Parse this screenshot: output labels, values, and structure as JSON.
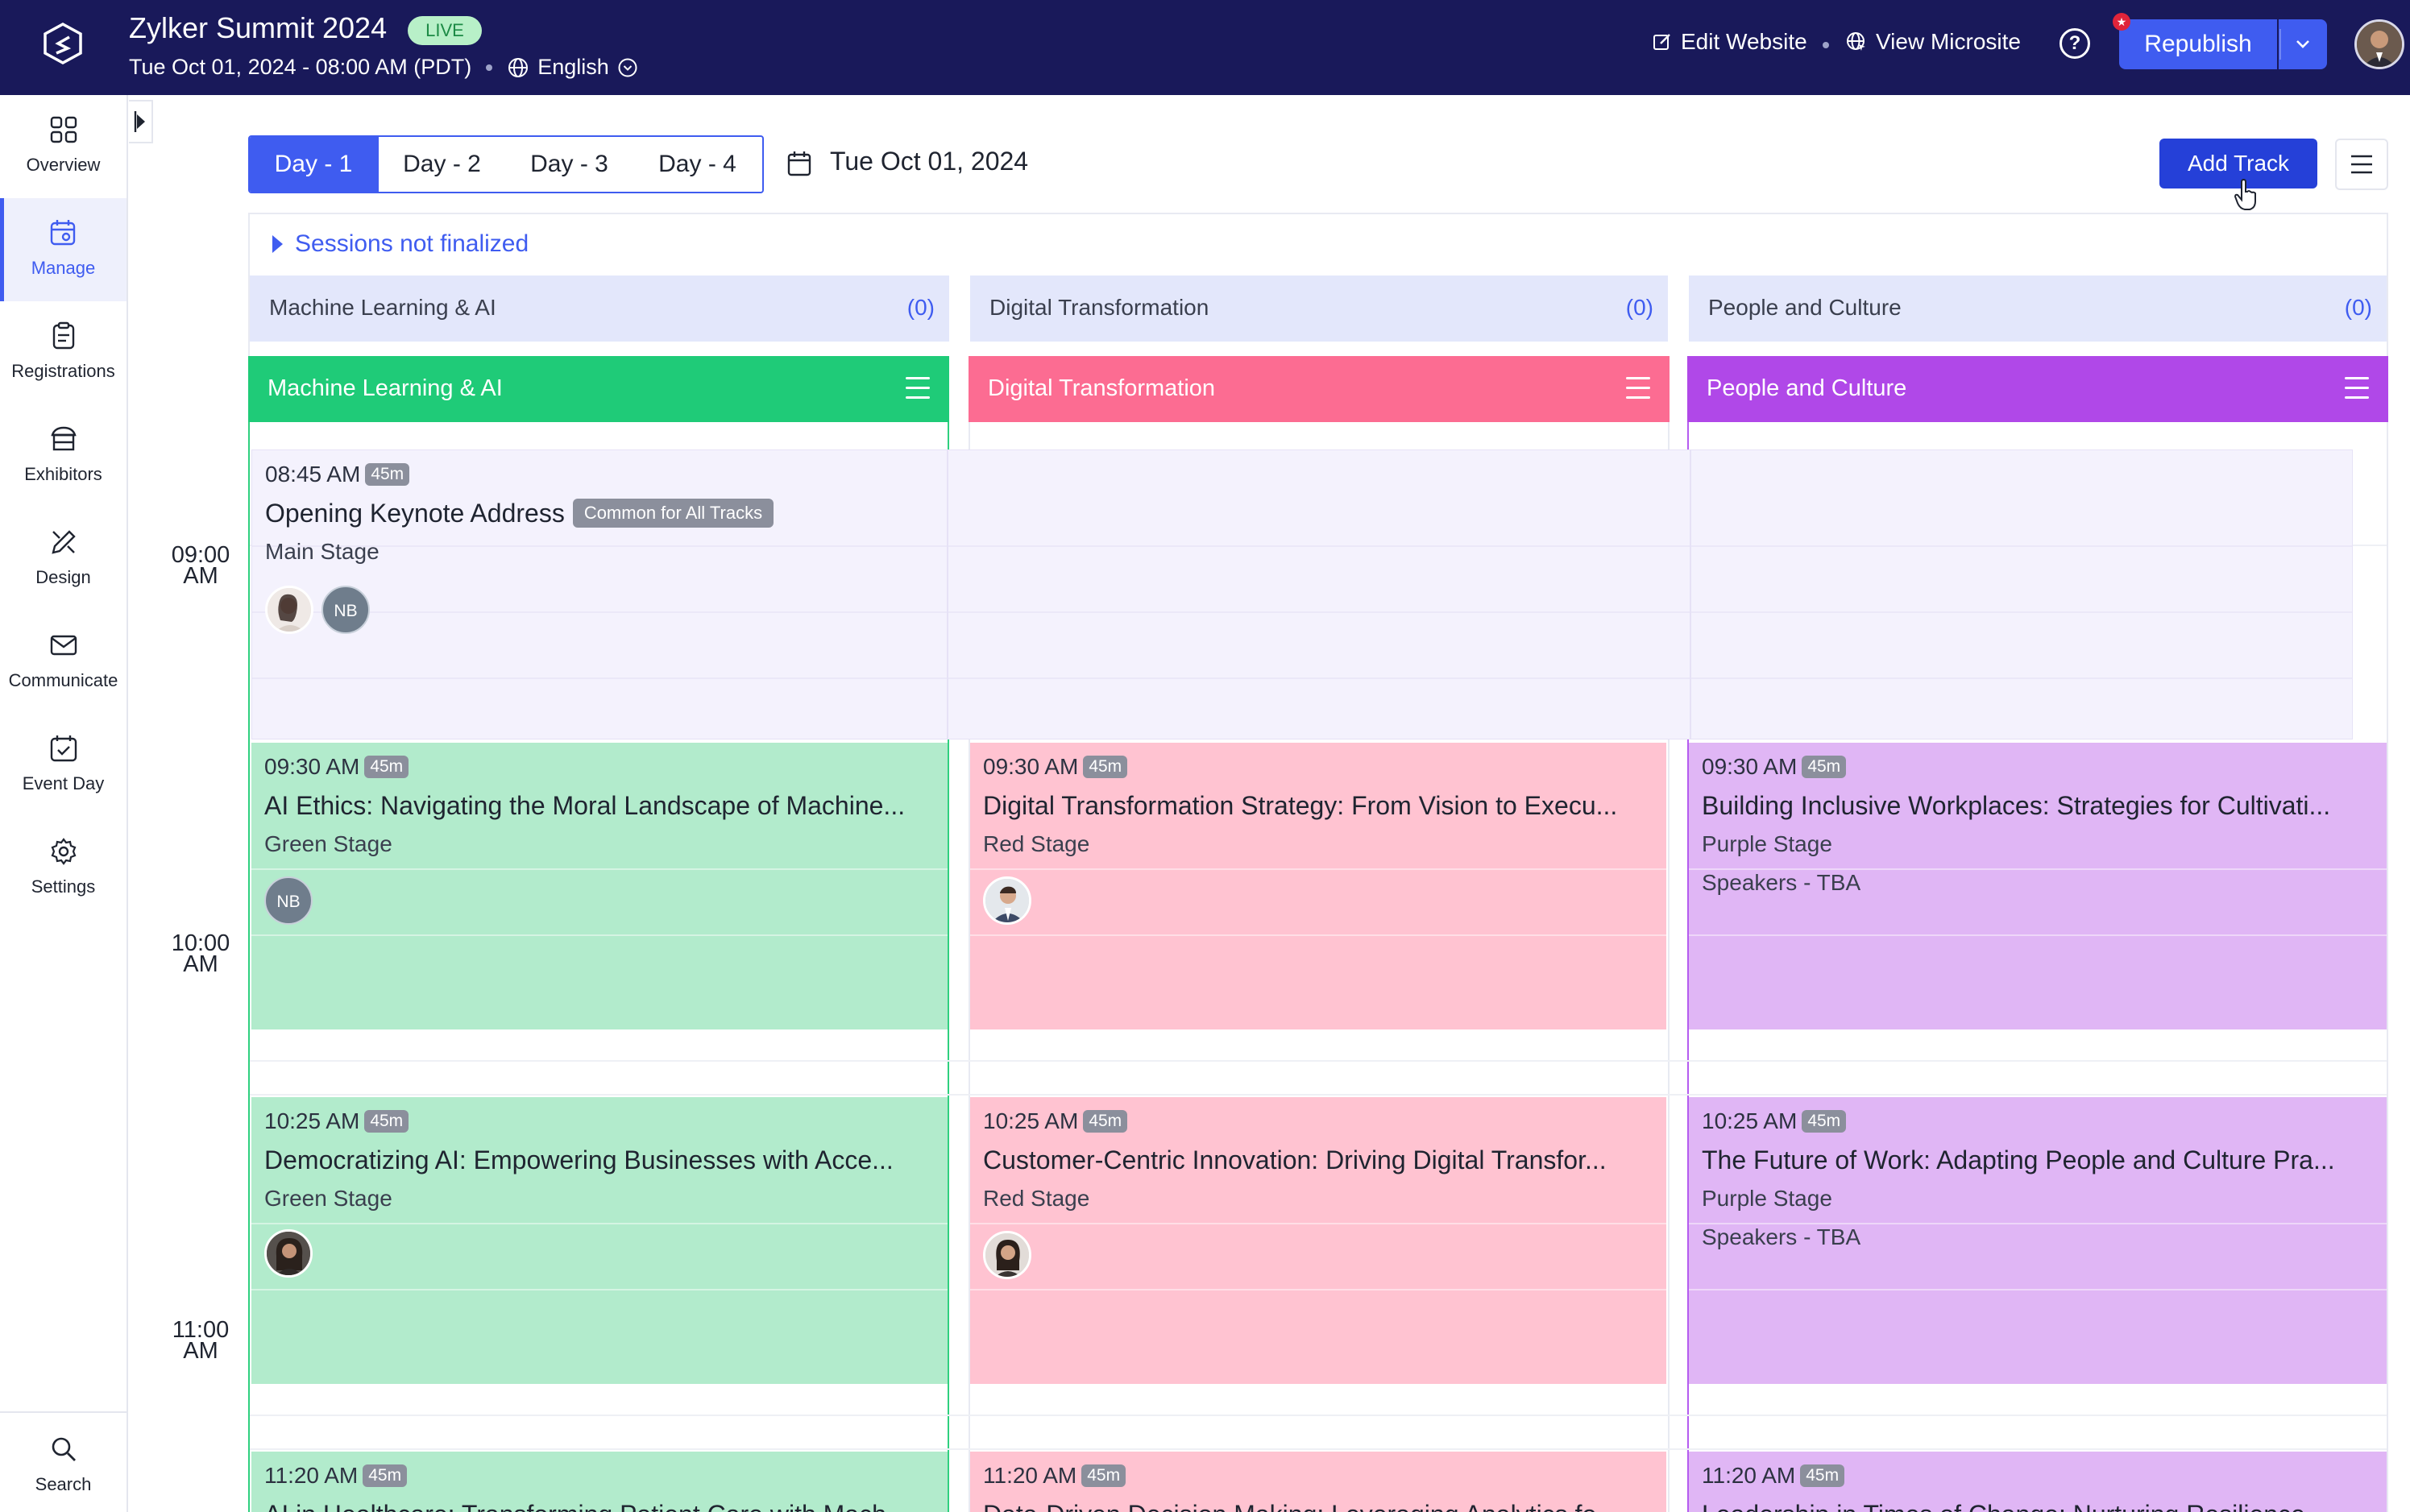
{
  "header": {
    "event_title": "Zylker Summit 2024",
    "live_badge": "LIVE",
    "event_datetime": "Tue Oct 01, 2024 - 08:00 AM (PDT)",
    "language": "English",
    "edit_website": "Edit Website",
    "view_microsite": "View Microsite",
    "help": "?",
    "republish": "Republish"
  },
  "sidebar": {
    "items": [
      {
        "label": "Overview",
        "icon": "grid-icon"
      },
      {
        "label": "Manage",
        "icon": "calendar-gear-icon",
        "active": true
      },
      {
        "label": "Registrations",
        "icon": "clipboard-icon"
      },
      {
        "label": "Exhibitors",
        "icon": "booth-icon"
      },
      {
        "label": "Design",
        "icon": "design-tools-icon"
      },
      {
        "label": "Communicate",
        "icon": "envelope-icon"
      },
      {
        "label": "Event Day",
        "icon": "calendar-check-icon"
      },
      {
        "label": "Settings",
        "icon": "gear-icon"
      }
    ],
    "search": "Search"
  },
  "toolbar": {
    "days": [
      "Day - 1",
      "Day - 2",
      "Day - 3",
      "Day - 4"
    ],
    "active_day": "Day - 1",
    "date": "Tue Oct 01, 2024",
    "add_track": "Add Track"
  },
  "schedule": {
    "not_finalized": "Sessions not finalized",
    "unscheduled": [
      {
        "name": "Machine Learning & AI",
        "count": "(0)"
      },
      {
        "name": "Digital Transformation",
        "count": "(0)"
      },
      {
        "name": "People and Culture",
        "count": "(0)"
      }
    ],
    "tracks": [
      {
        "name": "Machine Learning & AI",
        "color": "#1fcb78"
      },
      {
        "name": "Digital Transformation",
        "color": "#fc6c92"
      },
      {
        "name": "People and Culture",
        "color": "#b048e8"
      }
    ],
    "times": [
      {
        "hour": "09:00",
        "ampm": "AM"
      },
      {
        "hour": "10:00",
        "ampm": "AM"
      },
      {
        "hour": "11:00",
        "ampm": "AM"
      }
    ],
    "keynote": {
      "time": "08:45 AM",
      "duration": "45m",
      "title": "Opening Keynote Address",
      "badge": "Common for All Tracks",
      "stage": "Main Stage",
      "speaker_initials": "NB"
    },
    "rows": [
      [
        {
          "time": "09:30 AM",
          "duration": "45m",
          "title": "AI Ethics: Navigating the Moral Landscape of Machine...",
          "stage": "Green Stage",
          "speaker_initials": "NB"
        },
        {
          "time": "09:30 AM",
          "duration": "45m",
          "title": "Digital Transformation Strategy: From Vision to Execu...",
          "stage": "Red Stage"
        },
        {
          "time": "09:30 AM",
          "duration": "45m",
          "title": "Building Inclusive Workplaces: Strategies for Cultivati...",
          "stage": "Purple Stage",
          "speakers": "Speakers - TBA"
        }
      ],
      [
        {
          "time": "10:25 AM",
          "duration": "45m",
          "title": "Democratizing AI: Empowering Businesses with Acce...",
          "stage": "Green Stage"
        },
        {
          "time": "10:25 AM",
          "duration": "45m",
          "title": "Customer-Centric Innovation: Driving Digital Transfor...",
          "stage": "Red Stage"
        },
        {
          "time": "10:25 AM",
          "duration": "45m",
          "title": "The Future of Work: Adapting People and Culture Pra...",
          "stage": "Purple Stage",
          "speakers": "Speakers - TBA"
        }
      ],
      [
        {
          "time": "11:20 AM",
          "duration": "45m",
          "title": "AI in Healthcare: Transforming Patient Care with Mach..."
        },
        {
          "time": "11:20 AM",
          "duration": "45m",
          "title": "Data-Driven Decision Making: Leveraging Analytics fo..."
        },
        {
          "time": "11:20 AM",
          "duration": "45m",
          "title": "Leadership in Times of Change: Nurturing Resilience..."
        }
      ]
    ]
  }
}
